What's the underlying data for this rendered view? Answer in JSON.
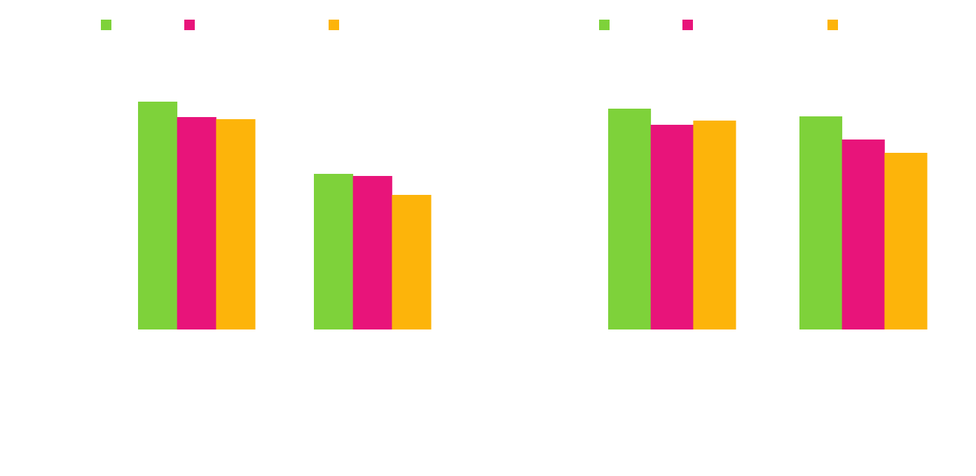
{
  "colors": {
    "series_a": "#7ed23a",
    "series_b": "#e8147a",
    "series_c": "#fdb40a",
    "background": "#ffffff"
  },
  "chart_data": [
    {
      "type": "bar",
      "title": "",
      "xlabel": "",
      "ylabel": "",
      "categories": [
        "",
        ""
      ],
      "series": [
        {
          "values": [
            325,
            222
          ]
        },
        {
          "values": [
            303,
            219
          ]
        },
        {
          "values": [
            300,
            192
          ]
        }
      ],
      "ylim": [
        0,
        400
      ],
      "grid": false,
      "legend": "top"
    },
    {
      "type": "bar",
      "title": "",
      "xlabel": "",
      "ylabel": "",
      "categories": [
        "",
        ""
      ],
      "series": [
        {
          "values": [
            315,
            304
          ]
        },
        {
          "values": [
            292,
            271
          ]
        },
        {
          "values": [
            298,
            252
          ]
        }
      ],
      "ylim": [
        0,
        400
      ],
      "grid": false,
      "legend": "top"
    }
  ]
}
